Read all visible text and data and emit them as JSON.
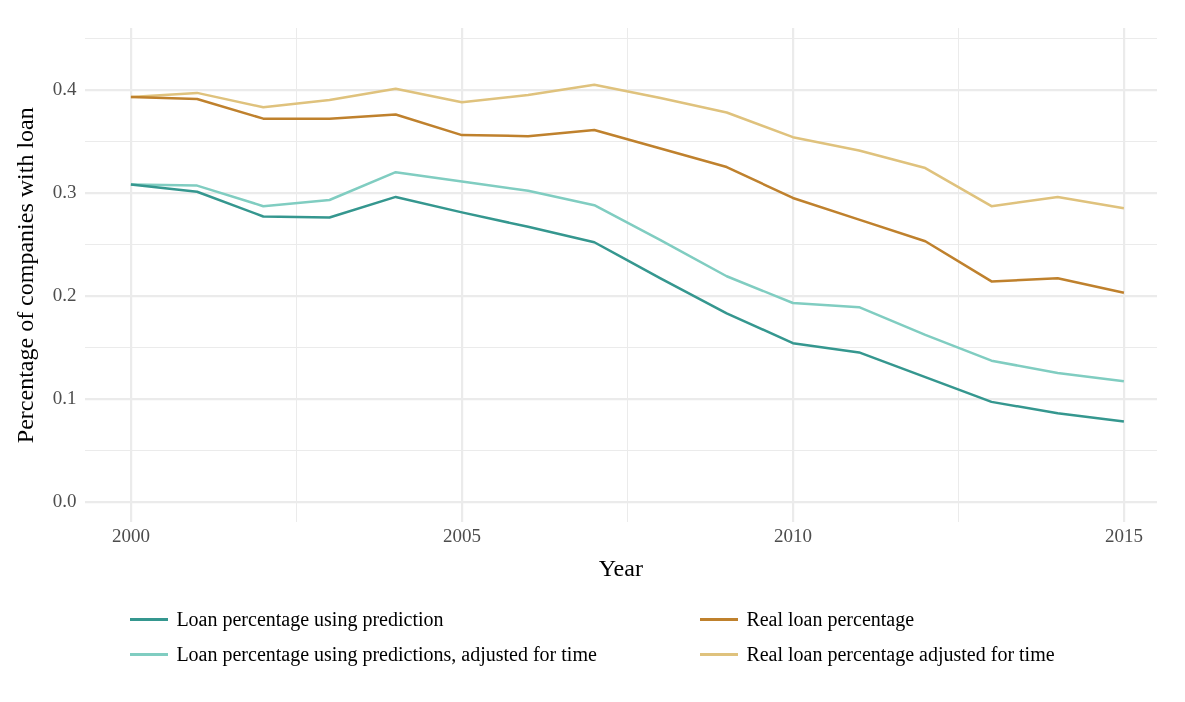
{
  "chart_data": {
    "type": "line",
    "xlabel": "Year",
    "ylabel": "Percentage of companies with loan",
    "x": [
      2000,
      2001,
      2002,
      2003,
      2004,
      2005,
      2006,
      2007,
      2008,
      2009,
      2010,
      2011,
      2012,
      2013,
      2014,
      2015
    ],
    "series": [
      {
        "name": "Loan percentage using prediction",
        "color": "#35978f",
        "values": [
          0.308,
          0.301,
          0.277,
          0.276,
          0.296,
          0.281,
          0.267,
          0.252,
          0.217,
          0.183,
          0.154,
          0.145,
          0.121,
          0.097,
          0.086,
          0.078
        ]
      },
      {
        "name": "Real loan percentage",
        "color": "#bf812d",
        "values": [
          0.393,
          0.391,
          0.372,
          0.372,
          0.376,
          0.356,
          0.355,
          0.361,
          0.343,
          0.325,
          0.295,
          0.274,
          0.253,
          0.214,
          0.217,
          0.203
        ]
      },
      {
        "name": "Loan percentage using predictions, adjusted for time",
        "color": "#80cdc1",
        "values": [
          0.308,
          0.307,
          0.287,
          0.293,
          0.32,
          0.311,
          0.302,
          0.288,
          0.254,
          0.219,
          0.193,
          0.189,
          0.162,
          0.137,
          0.125,
          0.117
        ]
      },
      {
        "name": "Real loan percentage adjusted for time",
        "color": "#dfc27d",
        "values": [
          0.393,
          0.397,
          0.383,
          0.39,
          0.401,
          0.388,
          0.395,
          0.405,
          0.392,
          0.378,
          0.354,
          0.341,
          0.324,
          0.287,
          0.296,
          0.285
        ]
      }
    ],
    "xlim": [
      1999.3,
      2015.5
    ],
    "xticks": [
      2000,
      {
        "value": 2002.5,
        "label": null
      },
      2005,
      {
        "value": 2007.5,
        "label": null
      },
      2010,
      {
        "value": 2012.5,
        "label": null
      },
      2015
    ],
    "ylim": [
      -0.02,
      0.46
    ],
    "yticks": [
      "0.0",
      {
        "value": 0.05,
        "label": null
      },
      0.1,
      {
        "value": 0.15,
        "label": null
      },
      0.2,
      {
        "value": 0.25,
        "label": null
      },
      0.3,
      {
        "value": 0.35,
        "label": null
      },
      0.4,
      {
        "value": 0.45,
        "label": null
      }
    ],
    "grid": true,
    "legend": "bottom",
    "marker": "none",
    "line_style": "solid"
  }
}
